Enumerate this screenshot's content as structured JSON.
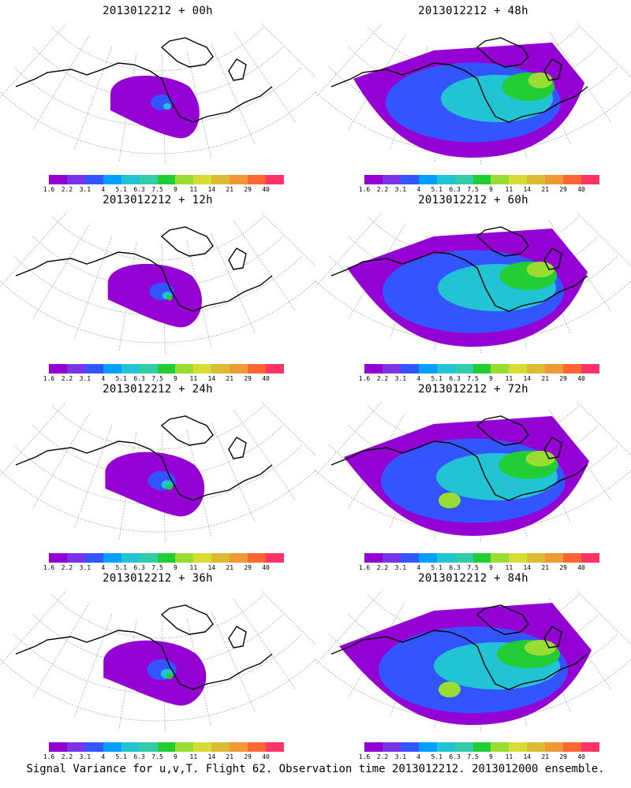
{
  "panels": [
    {
      "title": "2013012212 + 00h",
      "spread": 0.0
    },
    {
      "title": "2013012212 + 48h",
      "spread": 0.55
    },
    {
      "title": "2013012212 + 12h",
      "spread": 0.15
    },
    {
      "title": "2013012212 + 60h",
      "spread": 0.75
    },
    {
      "title": "2013012212 + 24h",
      "spread": 0.3
    },
    {
      "title": "2013012212 + 72h",
      "spread": 0.85
    },
    {
      "title": "2013012212 + 36h",
      "spread": 0.4
    },
    {
      "title": "2013012212 + 84h",
      "spread": 1.0
    }
  ],
  "colorbar": {
    "colors": [
      "#9400d3",
      "#7a33e6",
      "#3355ff",
      "#00a0ff",
      "#22c4d4",
      "#33ccaa",
      "#22cc33",
      "#99dd33",
      "#d8dd33",
      "#ddbb33",
      "#ee9933",
      "#ff6633",
      "#ff3366"
    ],
    "labels": [
      "1.6",
      "2.2",
      "3.1",
      "4",
      "5.1",
      "6.3",
      "7.5",
      "9",
      "11",
      "14",
      "21",
      "29",
      "40"
    ]
  },
  "caption": "Signal Variance for u,v,T. Flight 62. Observation time 2013012212. 2013012000 ensemble."
}
